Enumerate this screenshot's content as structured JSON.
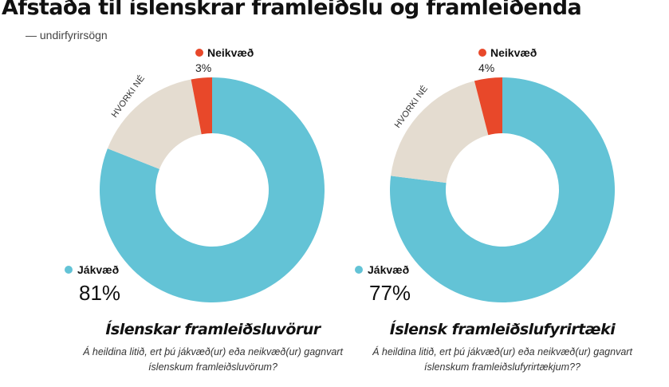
{
  "title": "Afstaða til íslenskrar framleiðslu og framleiðenda",
  "subtitle": "— undirfyrirsögn",
  "colors": {
    "positive": "#63c3d6",
    "neutral": "#e4dcd0",
    "negative": "#e8482a"
  },
  "chart_data": [
    {
      "type": "pie",
      "variant": "donut",
      "title": "Íslenskar framleiðsluvörur",
      "question": "Á heildina litið, ert þú jákvæð(ur) eða neikvæð(ur) gagnvart íslenskum framleiðsluvörum?",
      "slices": [
        {
          "label": "Jákvæð",
          "value": 81,
          "value_label": "81%",
          "color": "#63c3d6"
        },
        {
          "label": "HVORKI NÉ",
          "value": 16,
          "color": "#e4dcd0"
        },
        {
          "label": "Neikvæð",
          "value": 3,
          "value_label": "3%",
          "color": "#e8482a"
        }
      ]
    },
    {
      "type": "pie",
      "variant": "donut",
      "title": "Íslensk framleiðslufyrirtæki",
      "question": "Á heildina litið, ert þú jákvæð(ur) eða neikvæð(ur) gagnvart íslenskum framleiðslufyrirtækjum??",
      "slices": [
        {
          "label": "Jákvæð",
          "value": 77,
          "value_label": "77%",
          "color": "#63c3d6"
        },
        {
          "label": "HVORKI NÉ",
          "value": 19,
          "color": "#e4dcd0"
        },
        {
          "label": "Neikvæð",
          "value": 4,
          "value_label": "4%",
          "color": "#e8482a"
        }
      ]
    }
  ]
}
